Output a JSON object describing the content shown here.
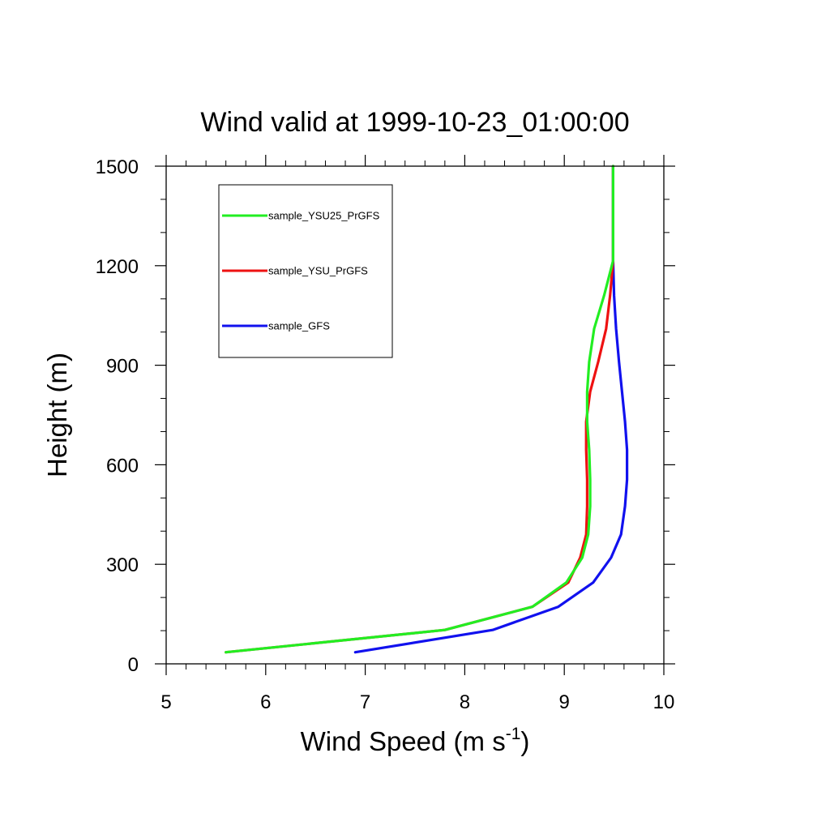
{
  "chart_data": {
    "type": "line",
    "title": "Wind valid at 1999-10-23_01:00:00",
    "xlabel": {
      "main": "Wind Speed (m s",
      "sup": "-1",
      "end": ")"
    },
    "ylabel": "Height (m)",
    "xlim": [
      5,
      10
    ],
    "ylim": [
      0,
      1500
    ],
    "x_ticks": [
      "5",
      "6",
      "7",
      "8",
      "9",
      "10"
    ],
    "y_ticks": [
      "0",
      "300",
      "600",
      "900",
      "1200",
      "1500"
    ],
    "grid": false,
    "legend_position": "top-left",
    "series": [
      {
        "name": "sample_YSU25_PrGFS",
        "color": "#22ee22",
        "points": [
          [
            5.6,
            35
          ],
          [
            7.8,
            102
          ],
          [
            8.68,
            172
          ],
          [
            9.02,
            245
          ],
          [
            9.18,
            320
          ],
          [
            9.24,
            390
          ],
          [
            9.26,
            475
          ],
          [
            9.26,
            555
          ],
          [
            9.25,
            645
          ],
          [
            9.23,
            730
          ],
          [
            9.23,
            820
          ],
          [
            9.25,
            910
          ],
          [
            9.3,
            1010
          ],
          [
            9.4,
            1110
          ],
          [
            9.49,
            1215
          ],
          [
            9.49,
            1500
          ]
        ]
      },
      {
        "name": "sample_YSU_PrGFS",
        "color": "#ee1111",
        "points": [
          [
            5.6,
            35
          ],
          [
            7.8,
            102
          ],
          [
            8.68,
            172
          ],
          [
            9.04,
            245
          ],
          [
            9.16,
            320
          ],
          [
            9.22,
            390
          ],
          [
            9.23,
            475
          ],
          [
            9.23,
            555
          ],
          [
            9.22,
            645
          ],
          [
            9.22,
            730
          ],
          [
            9.26,
            820
          ],
          [
            9.34,
            910
          ],
          [
            9.42,
            1010
          ],
          [
            9.46,
            1110
          ],
          [
            9.49,
            1215
          ],
          [
            9.49,
            1500
          ]
        ]
      },
      {
        "name": "sample_GFS",
        "color": "#1111ee",
        "points": [
          [
            6.9,
            35
          ],
          [
            8.28,
            102
          ],
          [
            8.94,
            172
          ],
          [
            9.29,
            245
          ],
          [
            9.47,
            320
          ],
          [
            9.57,
            390
          ],
          [
            9.61,
            475
          ],
          [
            9.63,
            555
          ],
          [
            9.63,
            645
          ],
          [
            9.61,
            730
          ],
          [
            9.58,
            820
          ],
          [
            9.55,
            910
          ],
          [
            9.52,
            1010
          ],
          [
            9.5,
            1110
          ],
          [
            9.49,
            1215
          ],
          [
            9.49,
            1500
          ]
        ]
      }
    ]
  }
}
